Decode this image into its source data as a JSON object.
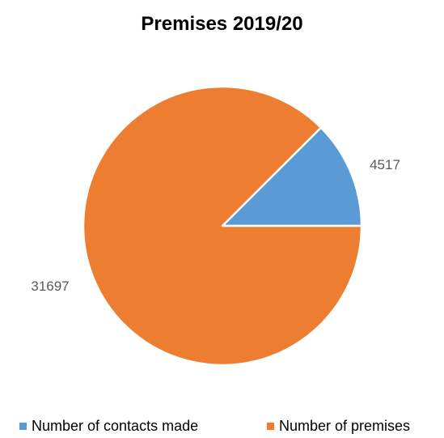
{
  "chart_data": {
    "type": "pie",
    "title": "Premises 2019/20",
    "categories": [
      "Number of contacts made",
      "Number of premises"
    ],
    "values": [
      4517,
      31697
    ],
    "colors": [
      "#5b9bd5",
      "#ed7d31"
    ],
    "data_labels": [
      "4517",
      "31697"
    ],
    "legend": "bottom",
    "start_angle_deg": 0,
    "direction": "counterclockwise"
  }
}
